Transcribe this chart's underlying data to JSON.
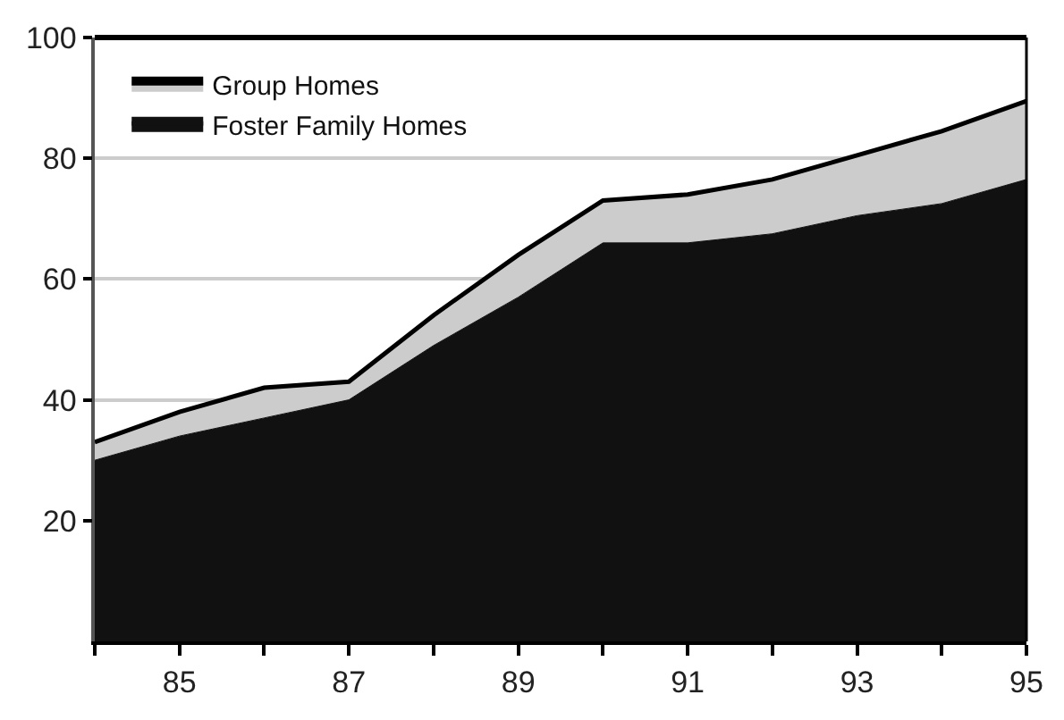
{
  "chart_data": {
    "type": "area",
    "stacked": true,
    "x": [
      84,
      85,
      86,
      87,
      88,
      89,
      90,
      91,
      92,
      93,
      94,
      95
    ],
    "series": [
      {
        "name": "Foster Family Homes",
        "color": "#111111",
        "values": [
          30,
          34,
          37,
          40,
          49,
          57,
          66,
          66,
          67.5,
          70.5,
          72.5,
          76.5
        ]
      },
      {
        "name": "Group Homes",
        "color": "#cccccc",
        "values": [
          3,
          4,
          5,
          3,
          5,
          7,
          7,
          8,
          9,
          10,
          12,
          13
        ]
      }
    ],
    "xlim": [
      84,
      95
    ],
    "xticks": [
      {
        "value": 84,
        "label": null
      },
      85,
      {
        "value": 86,
        "label": null
      },
      87,
      {
        "value": 88,
        "label": null
      },
      89,
      {
        "value": 90,
        "label": null
      },
      91,
      {
        "value": 92,
        "label": null
      },
      93,
      {
        "value": 94,
        "label": null
      },
      95
    ],
    "ylim": [
      0,
      100
    ],
    "yticks": [
      20,
      40,
      60,
      80,
      100
    ],
    "grid": "y",
    "legend": "top left"
  }
}
